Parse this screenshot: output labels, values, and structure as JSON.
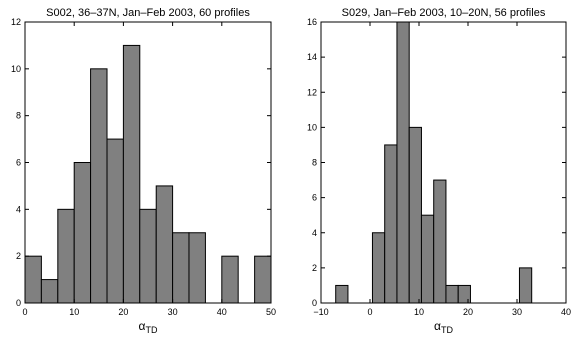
{
  "chart_data": [
    {
      "type": "bar",
      "title": "S002, 36–37N, Jan–Feb 2003, 60 profiles",
      "xlabel": "α",
      "xlabel_sub": "TD",
      "ylabel": "",
      "xlim": [
        0,
        50
      ],
      "ylim": [
        0,
        12
      ],
      "xticks": [
        0,
        10,
        20,
        30,
        40,
        50
      ],
      "yticks": [
        0,
        2,
        4,
        6,
        8,
        10,
        12
      ],
      "grid": false,
      "bins": [
        {
          "x0": 0.0,
          "x1": 3.33,
          "count": 2
        },
        {
          "x0": 3.33,
          "x1": 6.67,
          "count": 1
        },
        {
          "x0": 6.67,
          "x1": 10.0,
          "count": 4
        },
        {
          "x0": 10.0,
          "x1": 13.33,
          "count": 6
        },
        {
          "x0": 13.33,
          "x1": 16.67,
          "count": 10
        },
        {
          "x0": 16.67,
          "x1": 20.0,
          "count": 7
        },
        {
          "x0": 20.0,
          "x1": 23.33,
          "count": 11
        },
        {
          "x0": 23.33,
          "x1": 26.67,
          "count": 4
        },
        {
          "x0": 26.67,
          "x1": 30.0,
          "count": 5
        },
        {
          "x0": 30.0,
          "x1": 33.33,
          "count": 3
        },
        {
          "x0": 33.33,
          "x1": 36.67,
          "count": 3
        },
        {
          "x0": 36.67,
          "x1": 40.0,
          "count": 0
        },
        {
          "x0": 40.0,
          "x1": 43.33,
          "count": 2
        },
        {
          "x0": 43.33,
          "x1": 46.67,
          "count": 0
        },
        {
          "x0": 46.67,
          "x1": 50.0,
          "count": 2
        }
      ]
    },
    {
      "type": "bar",
      "title": "S029, Jan–Feb 2003, 10–20N, 56 profiles",
      "xlabel": "α",
      "xlabel_sub": "TD",
      "ylabel": "",
      "xlim": [
        -10,
        40
      ],
      "ylim": [
        0,
        16
      ],
      "xticks": [
        -10,
        0,
        10,
        20,
        30,
        40
      ],
      "yticks": [
        0,
        2,
        4,
        6,
        8,
        10,
        12,
        14,
        16
      ],
      "grid": false,
      "bins": [
        {
          "x0": -7.0,
          "x1": -4.5,
          "count": 1
        },
        {
          "x0": -4.5,
          "x1": -2.0,
          "count": 0
        },
        {
          "x0": -2.0,
          "x1": 0.5,
          "count": 0
        },
        {
          "x0": 0.5,
          "x1": 3.0,
          "count": 4
        },
        {
          "x0": 3.0,
          "x1": 5.5,
          "count": 9
        },
        {
          "x0": 5.5,
          "x1": 8.0,
          "count": 16
        },
        {
          "x0": 8.0,
          "x1": 10.5,
          "count": 10
        },
        {
          "x0": 10.5,
          "x1": 13.0,
          "count": 5
        },
        {
          "x0": 13.0,
          "x1": 15.5,
          "count": 7
        },
        {
          "x0": 15.5,
          "x1": 18.0,
          "count": 1
        },
        {
          "x0": 18.0,
          "x1": 20.5,
          "count": 1
        },
        {
          "x0": 20.5,
          "x1": 23.0,
          "count": 0
        },
        {
          "x0": 23.0,
          "x1": 25.5,
          "count": 0
        },
        {
          "x0": 25.5,
          "x1": 28.0,
          "count": 0
        },
        {
          "x0": 28.0,
          "x1": 30.5,
          "count": 0
        },
        {
          "x0": 30.5,
          "x1": 33.0,
          "count": 2
        }
      ]
    }
  ]
}
